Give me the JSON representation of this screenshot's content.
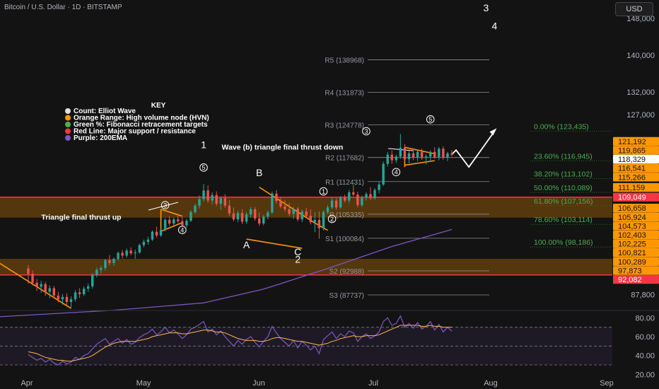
{
  "header": {
    "title": "Bitcoin / U.S. Dollar · 1D · BITSTAMP",
    "currency_button": "USD"
  },
  "colors": {
    "background": "#131313",
    "up": "#26a69a",
    "down": "#ef5350",
    "ema": "#7e57c2",
    "hvn": "#ff9800",
    "support": "#f23645",
    "fib": "#4caf50",
    "rsi": "#7e57c2"
  },
  "key": {
    "title": "KEY",
    "items": [
      {
        "label": "Count: Elliot Wave",
        "color": "#e0e0e0"
      },
      {
        "label": "Orange Range: High volume node (HVN)",
        "color": "#ff9800"
      },
      {
        "label": "Green %: Fibonacci retracement targets",
        "color": "#4caf50"
      },
      {
        "label": "Red Line: Major support / resistance",
        "color": "#f23645"
      },
      {
        "label": "Purple: 200EMA",
        "color": "#7e57c2"
      }
    ]
  },
  "chart_data": {
    "type": "candlestick",
    "price_axis": {
      "range": [
        84500,
        152000
      ],
      "ticks": [
        148000,
        140000,
        132000,
        127000,
        87800
      ],
      "tick_labels": [
        "148,000",
        "140,000",
        "132,000",
        "127,000",
        "87,800"
      ]
    },
    "price_badges": [
      {
        "value": 121192,
        "label": "121,192",
        "color": "#ff9800"
      },
      {
        "value": 119865,
        "label": "119,865",
        "color": "#ff9800"
      },
      {
        "value": 118329,
        "label": "118,329",
        "color": "#131313"
      },
      {
        "value": 116541,
        "label": "116,541",
        "color": "#ff9800"
      },
      {
        "value": 115266,
        "label": "115,266",
        "color": "#ff9800"
      },
      {
        "value": 111159,
        "label": "111,159",
        "color": "#ff9800"
      },
      {
        "value": 109049,
        "label": "109,049",
        "color": "#f23645"
      },
      {
        "value": 106658,
        "label": "106,658",
        "color": "#ff9800"
      },
      {
        "value": 105924,
        "label": "105,924",
        "color": "#ff9800"
      },
      {
        "value": 104573,
        "label": "104,573",
        "color": "#ff9800"
      },
      {
        "value": 102403,
        "label": "102,403",
        "color": "#ff9800"
      },
      {
        "value": 102225,
        "label": "102,225",
        "color": "#ff9800"
      },
      {
        "value": 100821,
        "label": "100,821",
        "color": "#ff9800"
      },
      {
        "value": 100289,
        "label": "100,289",
        "color": "#ff9800"
      },
      {
        "value": 97873,
        "label": "97,873",
        "color": "#ff9800"
      },
      {
        "value": 92082,
        "label": "92,082",
        "color": "#f23645"
      }
    ],
    "time_axis": {
      "labels": [
        "Apr",
        "May",
        "Jun",
        "Jul",
        "Aug",
        "Sep"
      ]
    },
    "pivots": [
      {
        "label": "R5 (138968)",
        "value": 138968
      },
      {
        "label": "R4 (131873)",
        "value": 131873
      },
      {
        "label": "R3 (124778)",
        "value": 124778
      },
      {
        "label": "R2 (117682)",
        "value": 117682
      },
      {
        "label": "R1 (112431)",
        "value": 112431
      },
      {
        "label": "P (105335)",
        "value": 105335
      },
      {
        "label": "S1 (100084)",
        "value": 100084
      },
      {
        "label": "S2 (92988)",
        "value": 92988
      },
      {
        "label": "S3 (87737)",
        "value": 87737
      }
    ],
    "fib_levels": [
      {
        "label": "0.00% (123,435)",
        "value": 123435
      },
      {
        "label": "23.60% (116,945)",
        "value": 116945
      },
      {
        "label": "38.20% (113,102)",
        "value": 113102
      },
      {
        "label": "50.00% (110,089)",
        "value": 110089
      },
      {
        "label": "61.80% (107,156)",
        "value": 107156
      },
      {
        "label": "78.60% (103,114)",
        "value": 103114
      },
      {
        "label": "100.00% (98,186)",
        "value": 98186
      }
    ],
    "hvn_zones": [
      [
        104573,
        109049
      ],
      [
        92082,
        95600
      ]
    ],
    "support_lines": [
      109049,
      92082
    ],
    "ohlc": [
      [
        0,
        93500,
        94200,
        90200,
        92300
      ],
      [
        1,
        92300,
        93100,
        89800,
        90400
      ],
      [
        2,
        90400,
        91200,
        88600,
        89500
      ],
      [
        3,
        89500,
        90800,
        88200,
        90100
      ],
      [
        4,
        90100,
        90600,
        87500,
        88400
      ],
      [
        5,
        88400,
        89800,
        87000,
        89200
      ],
      [
        6,
        89200,
        89700,
        86900,
        87600
      ],
      [
        7,
        87600,
        88400,
        86100,
        86800
      ],
      [
        8,
        86800,
        87900,
        85600,
        87300
      ],
      [
        9,
        87300,
        88100,
        85400,
        86200
      ],
      [
        10,
        86200,
        87400,
        85000,
        86800
      ],
      [
        11,
        86800,
        88800,
        86300,
        88300
      ],
      [
        12,
        88300,
        89200,
        87100,
        87900
      ],
      [
        13,
        87900,
        89600,
        87500,
        89100
      ],
      [
        14,
        89100,
        90200,
        88400,
        89600
      ],
      [
        15,
        89600,
        92500,
        89100,
        92100
      ],
      [
        16,
        92100,
        93700,
        91600,
        93200
      ],
      [
        17,
        93200,
        94100,
        92400,
        93600
      ],
      [
        18,
        93600,
        95600,
        93100,
        95300
      ],
      [
        19,
        95300,
        96400,
        94200,
        94700
      ],
      [
        20,
        94700,
        95900,
        94100,
        95600
      ],
      [
        21,
        95600,
        97200,
        95200,
        96900
      ],
      [
        22,
        96900,
        97500,
        95700,
        96300
      ],
      [
        23,
        96300,
        97800,
        95900,
        97400
      ],
      [
        24,
        97400,
        98100,
        96400,
        96800
      ],
      [
        25,
        96800,
        97600,
        95600,
        97000
      ],
      [
        26,
        97000,
        98900,
        96700,
        98600
      ],
      [
        27,
        98600,
        99800,
        98100,
        99300
      ],
      [
        28,
        99300,
        100400,
        98700,
        99800
      ],
      [
        29,
        99800,
        101800,
        99500,
        101500
      ],
      [
        30,
        101500,
        102600,
        100200,
        100700
      ],
      [
        31,
        100700,
        102200,
        100400,
        101900
      ],
      [
        32,
        101900,
        104500,
        101600,
        104100
      ],
      [
        33,
        104100,
        104900,
        102800,
        103300
      ],
      [
        34,
        103300,
        104600,
        102900,
        104200
      ],
      [
        35,
        104200,
        105400,
        103400,
        103800
      ],
      [
        36,
        103800,
        104700,
        102600,
        102900
      ],
      [
        37,
        102900,
        104300,
        102400,
        103900
      ],
      [
        38,
        103900,
        106200,
        103600,
        105800
      ],
      [
        39,
        105800,
        107600,
        105400,
        107200
      ],
      [
        40,
        107200,
        109400,
        106600,
        108600
      ],
      [
        41,
        108600,
        111900,
        108100,
        110500
      ],
      [
        42,
        110500,
        111600,
        107800,
        108300
      ],
      [
        43,
        108300,
        110100,
        107500,
        109500
      ],
      [
        44,
        109500,
        110300,
        107100,
        107600
      ],
      [
        45,
        107600,
        109200,
        106300,
        108800
      ],
      [
        46,
        108800,
        109700,
        106700,
        107200
      ],
      [
        47,
        107200,
        108400,
        104900,
        105500
      ],
      [
        48,
        105500,
        106800,
        103800,
        104200
      ],
      [
        49,
        104200,
        106100,
        103600,
        105600
      ],
      [
        50,
        105600,
        106400,
        103200,
        103700
      ],
      [
        51,
        103700,
        105800,
        103300,
        105300
      ],
      [
        52,
        105300,
        106900,
        104600,
        106400
      ],
      [
        53,
        106400,
        106900,
        103900,
        104400
      ],
      [
        54,
        104400,
        105700,
        102800,
        103300
      ],
      [
        55,
        103300,
        105200,
        102900,
        104800
      ],
      [
        56,
        104800,
        106100,
        104200,
        105700
      ],
      [
        57,
        105700,
        110300,
        105400,
        109800
      ],
      [
        58,
        109800,
        110600,
        107600,
        108200
      ],
      [
        59,
        108200,
        109100,
        106600,
        107000
      ],
      [
        60,
        107000,
        108400,
        105900,
        106400
      ],
      [
        61,
        106400,
        107800,
        104900,
        105400
      ],
      [
        62,
        105400,
        106900,
        104300,
        106500
      ],
      [
        63,
        106500,
        106900,
        103800,
        104200
      ],
      [
        64,
        104200,
        106300,
        103600,
        105900
      ],
      [
        65,
        105900,
        106700,
        104500,
        105000
      ],
      [
        66,
        105000,
        106400,
        103100,
        103600
      ],
      [
        67,
        103600,
        105800,
        101400,
        104100
      ],
      [
        68,
        104100,
        105900,
        100000,
        102300
      ],
      [
        69,
        102300,
        106200,
        101800,
        105800
      ],
      [
        70,
        105800,
        107300,
        105300,
        106800
      ],
      [
        71,
        106800,
        108900,
        106400,
        108300
      ],
      [
        72,
        108300,
        108800,
        106300,
        106800
      ],
      [
        73,
        106800,
        109300,
        106500,
        108900
      ],
      [
        74,
        108900,
        109600,
        107900,
        108300
      ],
      [
        75,
        108300,
        110600,
        107800,
        110100
      ],
      [
        76,
        110100,
        111700,
        109300,
        109600
      ],
      [
        77,
        109600,
        110200,
        106800,
        107300
      ],
      [
        78,
        107300,
        109400,
        106900,
        108900
      ],
      [
        79,
        108900,
        110100,
        108300,
        109700
      ],
      [
        80,
        109700,
        111200,
        108400,
        108800
      ],
      [
        81,
        108800,
        111000,
        108500,
        110600
      ],
      [
        82,
        110600,
        112400,
        109900,
        111800
      ],
      [
        83,
        111800,
        116800,
        111500,
        116300
      ],
      [
        84,
        116300,
        118900,
        115700,
        118300
      ],
      [
        85,
        118300,
        119200,
        116300,
        117100
      ],
      [
        86,
        117100,
        118300,
        116500,
        117900
      ],
      [
        87,
        117900,
        122800,
        117400,
        119800
      ],
      [
        88,
        119800,
        120600,
        116800,
        117300
      ],
      [
        89,
        117300,
        119100,
        116400,
        118600
      ],
      [
        90,
        118600,
        119700,
        117100,
        117700
      ],
      [
        91,
        117700,
        119200,
        116900,
        118900
      ],
      [
        92,
        118900,
        119600,
        117200,
        117600
      ],
      [
        93,
        117600,
        118400,
        116200,
        117900
      ],
      [
        94,
        117900,
        119300,
        116800,
        118900
      ],
      [
        95,
        118900,
        119900,
        117400,
        117800
      ],
      [
        96,
        117800,
        120000,
        117100,
        119600
      ],
      [
        97,
        119600,
        120100,
        117200,
        117700
      ],
      [
        98,
        117700,
        118900,
        116900,
        118600
      ],
      [
        99,
        118600,
        119300,
        117900,
        118329
      ]
    ],
    "ema200": [
      [
        41,
        86000
      ],
      [
        55,
        89000
      ],
      [
        70,
        93500
      ],
      [
        85,
        98300
      ],
      [
        99,
        102000
      ]
    ],
    "projection_path": [
      [
        99,
        118329
      ],
      [
        100,
        119300
      ],
      [
        103,
        115600
      ],
      [
        109,
        123435
      ]
    ],
    "wave_labels": [
      {
        "text": "1",
        "circled": false,
        "i": 41,
        "v": 120500
      },
      {
        "text": "5",
        "circled": true,
        "i": 41,
        "v": 115500
      },
      {
        "text": "3",
        "circled": true,
        "i": 32,
        "v": 107300
      },
      {
        "text": "4",
        "circled": true,
        "i": 36,
        "v": 101900
      },
      {
        "text": "B",
        "circled": false,
        "i": 54,
        "v": 114400
      },
      {
        "text": "A",
        "circled": false,
        "i": 51,
        "v": 98700
      },
      {
        "text": "C",
        "circled": false,
        "i": 63,
        "v": 97100
      },
      {
        "text": "2",
        "circled": false,
        "i": 63,
        "v": 95500
      },
      {
        "text": "1",
        "circled": true,
        "i": 69,
        "v": 110300
      },
      {
        "text": "2",
        "circled": true,
        "i": 71,
        "v": 104300
      },
      {
        "text": "3",
        "circled": true,
        "i": 79,
        "v": 123400
      },
      {
        "text": "4",
        "circled": true,
        "i": 86,
        "v": 114500
      },
      {
        "text": "5",
        "circled": true,
        "i": 94,
        "v": 126000
      },
      {
        "text": "3",
        "circled": false,
        "i": 107,
        "v": 150300
      },
      {
        "text": "4",
        "circled": false,
        "i": 109,
        "v": 146400
      }
    ],
    "annotations": [
      {
        "text": "Triangle final thrust up",
        "i": 8,
        "v": 104800
      },
      {
        "text": "Wave (b) triangle final thrust down",
        "i": 51,
        "v": 120000
      }
    ],
    "rsi": {
      "range": [
        18,
        84
      ],
      "ticks": [
        80,
        60,
        40,
        20
      ],
      "tick_labels": [
        "80.00",
        "60.00",
        "40.00",
        "20.00"
      ],
      "bands": [
        70,
        50,
        30
      ],
      "values": [
        41,
        38,
        35,
        37,
        33,
        36,
        32,
        30,
        34,
        31,
        33,
        38,
        36,
        40,
        42,
        47,
        52,
        55,
        58,
        52,
        55,
        58,
        53,
        57,
        52,
        54,
        59,
        62,
        64,
        68,
        62,
        65,
        70,
        64,
        67,
        63,
        58,
        62,
        68,
        70,
        73,
        76,
        65,
        68,
        62,
        66,
        60,
        55,
        50,
        56,
        52,
        57,
        60,
        54,
        49,
        55,
        60,
        71,
        64,
        58,
        54,
        50,
        56,
        48,
        55,
        51,
        46,
        50,
        42,
        57,
        61,
        65,
        58,
        63,
        60,
        66,
        64,
        55,
        60,
        63,
        58,
        61,
        65,
        76,
        80,
        72,
        74,
        82,
        70,
        74,
        69,
        75,
        68,
        71,
        76,
        67,
        73,
        65,
        70,
        66
      ],
      "ma": [
        44,
        43,
        42,
        40,
        38,
        37,
        36,
        35,
        35,
        34,
        34,
        35,
        36,
        37,
        38,
        40,
        43,
        46,
        49,
        51,
        53,
        54,
        55,
        55,
        55,
        55,
        56,
        57,
        58,
        60,
        61,
        62,
        63,
        64,
        64,
        64,
        63,
        63,
        64,
        65,
        66,
        67,
        67,
        66,
        65,
        65,
        64,
        62,
        60,
        58,
        57,
        56,
        56,
        56,
        55,
        55,
        56,
        58,
        59,
        59,
        58,
        57,
        56,
        55,
        55,
        54,
        53,
        52,
        51,
        52,
        53,
        55,
        56,
        58,
        59,
        60,
        61,
        60,
        60,
        61,
        61,
        61,
        62,
        64,
        66,
        68,
        70,
        72,
        72,
        72,
        72,
        72,
        71,
        71,
        72,
        71,
        71,
        70,
        70,
        70
      ]
    }
  }
}
